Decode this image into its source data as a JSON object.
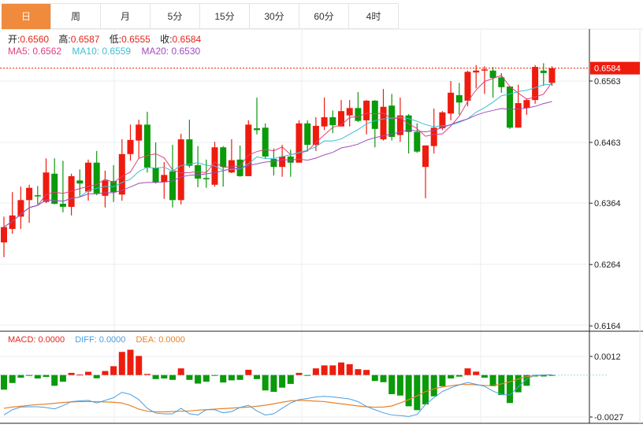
{
  "tabs": [
    "日",
    "周",
    "月",
    "5分",
    "15分",
    "30分",
    "60分",
    "4时"
  ],
  "active_tab": 0,
  "ohlc_labels": {
    "open_label": "开:",
    "open": "0.6560",
    "high_label": "高:",
    "high": "0.6587",
    "low_label": "低:",
    "low": "0.6555",
    "close_label": "收:",
    "close": "0.6584"
  },
  "ma": {
    "ma5": "MA5: 0.6562",
    "ma10": "MA10: 0.6559",
    "ma20": "MA20: 0.6530"
  },
  "macd_labels": {
    "macd": "MACD: 0.0000",
    "diff": "DIFF: 0.0000",
    "dea": "DEA: 0.0000"
  },
  "colors": {
    "up": "#ee1c0e",
    "down": "#0a9a0a",
    "ma5": "#e0407f",
    "ma10": "#3cbfd4",
    "ma20": "#a24bbf",
    "diff": "#4a9ee0",
    "dea": "#e8822a",
    "accent": "#f08a3c"
  },
  "chart_data": [
    {
      "type": "candlestick",
      "price_axis_ticks": [
        "0.6563",
        "0.6463",
        "0.6364",
        "0.6264",
        "0.6164"
      ],
      "current_price": "0.6584",
      "ohlc": [
        [
          0.63,
          0.6342,
          0.6276,
          0.6325
        ],
        [
          0.6322,
          0.6382,
          0.6314,
          0.6344
        ],
        [
          0.6342,
          0.6391,
          0.6322,
          0.6369
        ],
        [
          0.6369,
          0.6394,
          0.6332,
          0.6389
        ],
        [
          0.6377,
          0.6392,
          0.6362,
          0.6375
        ],
        [
          0.6366,
          0.6437,
          0.6364,
          0.6414
        ],
        [
          0.6412,
          0.6437,
          0.6362,
          0.6363
        ],
        [
          0.6363,
          0.6433,
          0.6349,
          0.6358
        ],
        [
          0.6358,
          0.6412,
          0.6344,
          0.6408
        ],
        [
          0.6401,
          0.6419,
          0.6375,
          0.6396
        ],
        [
          0.6383,
          0.6435,
          0.6368,
          0.643
        ],
        [
          0.643,
          0.6449,
          0.6377,
          0.638
        ],
        [
          0.6376,
          0.6417,
          0.6357,
          0.6401
        ],
        [
          0.64,
          0.6426,
          0.6366,
          0.6382
        ],
        [
          0.6378,
          0.6468,
          0.6368,
          0.6444
        ],
        [
          0.6444,
          0.6492,
          0.6433,
          0.6467
        ],
        [
          0.6466,
          0.65,
          0.6436,
          0.6492
        ],
        [
          0.6492,
          0.6513,
          0.6414,
          0.6422
        ],
        [
          0.6422,
          0.6463,
          0.6396,
          0.6398
        ],
        [
          0.6398,
          0.6431,
          0.6371,
          0.641
        ],
        [
          0.6416,
          0.6459,
          0.6357,
          0.6369
        ],
        [
          0.6369,
          0.6477,
          0.6362,
          0.6468
        ],
        [
          0.6468,
          0.65,
          0.6422,
          0.6425
        ],
        [
          0.6426,
          0.6457,
          0.639,
          0.6404
        ],
        [
          0.6405,
          0.6435,
          0.6389,
          0.6403
        ],
        [
          0.6394,
          0.6464,
          0.6391,
          0.6455
        ],
        [
          0.6455,
          0.6457,
          0.6391,
          0.6423
        ],
        [
          0.6414,
          0.6468,
          0.6413,
          0.6434
        ],
        [
          0.6435,
          0.6458,
          0.6407,
          0.6408
        ],
        [
          0.6408,
          0.6499,
          0.6408,
          0.6492
        ],
        [
          0.6486,
          0.6536,
          0.6476,
          0.6483
        ],
        [
          0.6487,
          0.6494,
          0.6437,
          0.644
        ],
        [
          0.6436,
          0.6453,
          0.6409,
          0.6423
        ],
        [
          0.6423,
          0.6459,
          0.6407,
          0.644
        ],
        [
          0.644,
          0.6451,
          0.6407,
          0.643
        ],
        [
          0.643,
          0.6499,
          0.643,
          0.6494
        ],
        [
          0.6494,
          0.6499,
          0.6448,
          0.6459
        ],
        [
          0.6459,
          0.6504,
          0.6449,
          0.649
        ],
        [
          0.6489,
          0.6536,
          0.6483,
          0.6504
        ],
        [
          0.6504,
          0.6515,
          0.6478,
          0.6491
        ],
        [
          0.6489,
          0.6532,
          0.6489,
          0.6514
        ],
        [
          0.6507,
          0.6532,
          0.6489,
          0.6519
        ],
        [
          0.6519,
          0.6545,
          0.6496,
          0.6498
        ],
        [
          0.6499,
          0.6532,
          0.6476,
          0.6531
        ],
        [
          0.6531,
          0.6532,
          0.6455,
          0.6485
        ],
        [
          0.6468,
          0.655,
          0.6466,
          0.6521
        ],
        [
          0.6523,
          0.6542,
          0.6466,
          0.6472
        ],
        [
          0.6475,
          0.6536,
          0.6464,
          0.6507
        ],
        [
          0.6507,
          0.6509,
          0.6445,
          0.648
        ],
        [
          0.648,
          0.6494,
          0.6446,
          0.6448
        ],
        [
          0.6423,
          0.6458,
          0.6372,
          0.6458
        ],
        [
          0.6457,
          0.6518,
          0.6445,
          0.6487
        ],
        [
          0.6486,
          0.6514,
          0.6483,
          0.6512
        ],
        [
          0.651,
          0.6563,
          0.6499,
          0.6544
        ],
        [
          0.654,
          0.656,
          0.6508,
          0.6528
        ],
        [
          0.6531,
          0.658,
          0.6522,
          0.6578
        ],
        [
          0.6577,
          0.6589,
          0.6551,
          0.658
        ],
        [
          0.658,
          0.6587,
          0.6542,
          0.6582
        ],
        [
          0.658,
          0.6586,
          0.6536,
          0.6568
        ],
        [
          0.6569,
          0.6576,
          0.6544,
          0.6553
        ],
        [
          0.6554,
          0.6555,
          0.6485,
          0.6487
        ],
        [
          0.6487,
          0.6557,
          0.6487,
          0.6527
        ],
        [
          0.6519,
          0.6535,
          0.6508,
          0.6532
        ],
        [
          0.6532,
          0.6589,
          0.6526,
          0.6586
        ],
        [
          0.658,
          0.6592,
          0.6555,
          0.6576
        ],
        [
          0.656,
          0.6587,
          0.6555,
          0.6584
        ]
      ]
    },
    {
      "type": "bar+line",
      "name": "MACD",
      "axis_ticks": [
        "0.0012",
        "-0.0027"
      ],
      "macd": [
        -0.00094,
        -0.00051,
        -0.00017,
        -3e-05,
        -0.00022,
        -0.00012,
        -0.00069,
        -0.00043,
        0.00014,
        3e-05,
        0.00021,
        -0.00021,
        0.00026,
        0.00057,
        0.00149,
        0.00163,
        0.00123,
        7e-05,
        -0.00026,
        -0.00022,
        -0.00031,
        0.00043,
        -0.00031,
        -0.00055,
        -0.00043,
        -3e-05,
        -0.00048,
        -0.00034,
        -0.00031,
        0.00034,
        -0.00026,
        -0.00099,
        -0.00108,
        -0.00081,
        -0.00057,
        0.00014,
        -3e-05,
        0.00043,
        0.00062,
        0.00062,
        0.00081,
        0.0007,
        0.00038,
        0.00033,
        -0.00038,
        -0.00046,
        -0.00123,
        -0.00132,
        -0.00201,
        -0.00226,
        -0.00189,
        -0.00137,
        -0.00072,
        -0.00022,
        -0.0001,
        0.00043,
        0.00022,
        -0.00017,
        -0.00072,
        -0.00129,
        -0.0018,
        -0.00111,
        -0.00069,
        -9e-05,
        -9e-05,
        -3e-05
      ],
      "diff": [
        -0.00257,
        -0.00223,
        -0.00206,
        -0.00204,
        -0.00204,
        -0.00209,
        -0.00218,
        -0.00197,
        -0.00171,
        -0.00166,
        -0.00163,
        -0.0018,
        -0.00163,
        -0.00146,
        -0.00111,
        -0.00125,
        -0.00158,
        -0.00214,
        -0.00245,
        -0.0025,
        -0.0025,
        -0.00214,
        -0.00249,
        -0.00257,
        -0.00223,
        -0.00223,
        -0.00243,
        -0.00235,
        -0.00209,
        -0.00194,
        -0.00231,
        -0.00257,
        -0.00249,
        -0.00214,
        -0.0018,
        -0.00158,
        -0.00151,
        -0.00141,
        -0.00137,
        -0.00141,
        -0.00147,
        -0.00154,
        -0.00171,
        -0.00202,
        -0.00223,
        -0.00243,
        -0.00257,
        -0.00261,
        -0.00267,
        -0.00254,
        -0.00189,
        -0.00146,
        -0.00106,
        -0.00082,
        -0.00063,
        -0.00048,
        -0.0006,
        -0.00072,
        -0.00103,
        -0.00125,
        -0.00129,
        -0.00077,
        -0.00026,
        0,
        0,
        2e-05
      ],
      "dea": [
        -0.00214,
        -0.00206,
        -0.00201,
        -0.00195,
        -0.0019,
        -0.00187,
        -0.00182,
        -0.00177,
        -0.00173,
        -0.00171,
        -0.00171,
        -0.00171,
        -0.00173,
        -0.00175,
        -0.0018,
        -0.00197,
        -0.00219,
        -0.00233,
        -0.00237,
        -0.00237,
        -0.00235,
        -0.00233,
        -0.00231,
        -0.00226,
        -0.00223,
        -0.00219,
        -0.00216,
        -0.00213,
        -0.00209,
        -0.00206,
        -0.00201,
        -0.00194,
        -0.00185,
        -0.00175,
        -0.00166,
        -0.00163,
        -0.00165,
        -0.00168,
        -0.00171,
        -0.00178,
        -0.00185,
        -0.00192,
        -0.00199,
        -0.00204,
        -0.00207,
        -0.00206,
        -0.00199,
        -0.0018,
        -0.00158,
        -0.00134,
        -0.00106,
        -0.00089,
        -0.00077,
        -0.00069,
        -0.00062,
        -0.0006,
        -0.00063,
        -0.00067,
        -0.00069,
        -0.00057,
        -0.00043,
        -0.00026,
        -0.0001,
        -3e-05,
        0,
        2e-05
      ]
    }
  ]
}
